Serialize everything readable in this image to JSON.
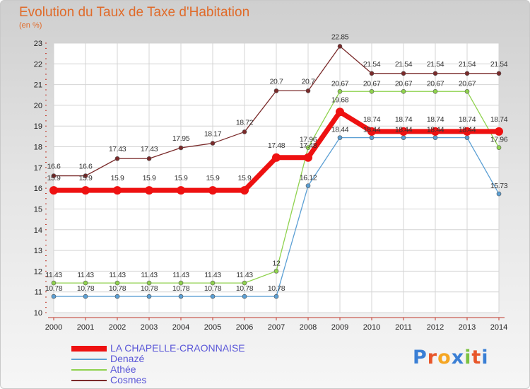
{
  "header": {
    "title": "Evolution du Taux de Taxe d'Habitation",
    "subtitle": "(en %)"
  },
  "logo": {
    "text": "Proxiti",
    "colors": [
      "#3a7fd5",
      "#e8562a",
      "#f5a623",
      "#3a7fd5",
      "#7cc242",
      "#e8562a",
      "#3a7fd5"
    ]
  },
  "chart_data": {
    "type": "line",
    "x": [
      2000,
      2001,
      2002,
      2003,
      2004,
      2005,
      2006,
      2007,
      2008,
      2009,
      2010,
      2011,
      2012,
      2013,
      2014
    ],
    "xtick_labels": [
      "2000",
      "2001",
      "2002",
      "2003",
      "2004",
      "2005",
      "2006",
      "2007",
      "2008",
      "2009",
      "2010",
      "2011",
      "2012",
      "2013",
      "2014"
    ],
    "ylim": [
      10,
      23
    ],
    "ytick_labels": [
      "10",
      "11",
      "12",
      "13",
      "14",
      "15",
      "16",
      "17",
      "18",
      "19",
      "20",
      "21",
      "22",
      "23"
    ],
    "grid": true,
    "legend_position": "bottom-left",
    "series": [
      {
        "name": "LA CHAPELLE-CRAONNAISE",
        "color": "#ee1111",
        "values": [
          15.9,
          15.9,
          15.9,
          15.9,
          15.9,
          15.9,
          15.9,
          17.48,
          17.48,
          19.68,
          18.74,
          18.74,
          18.74,
          18.74,
          18.74
        ],
        "labels": [
          "15.9",
          "15.9",
          "15.9",
          "15.9",
          "15.9",
          "15.9",
          "15.9",
          "17.48",
          "17.48",
          "19.68",
          "18.74",
          "18.74",
          "18.74",
          "18.74",
          "18.74"
        ]
      },
      {
        "name": "Denazé",
        "color": "#5b9fd4",
        "values": [
          10.78,
          10.78,
          10.78,
          10.78,
          10.78,
          10.78,
          10.78,
          10.78,
          16.12,
          18.44,
          18.44,
          18.44,
          18.44,
          18.44,
          15.73
        ],
        "labels": [
          "10.78",
          "10.78",
          "10.78",
          "10.78",
          "10.78",
          "10.78",
          "10.78",
          "10.78",
          "16.12",
          "18.44",
          "18.44",
          "18.44",
          "18.44",
          "18.44",
          "15.73"
        ]
      },
      {
        "name": "Athée",
        "color": "#8fd24e",
        "values": [
          11.43,
          11.43,
          11.43,
          11.43,
          11.43,
          11.43,
          11.43,
          12,
          17.96,
          20.67,
          20.67,
          20.67,
          20.67,
          20.67,
          17.96
        ],
        "labels": [
          "11.43",
          "11.43",
          "11.43",
          "11.43",
          "11.43",
          "11.43",
          "11.43",
          "12",
          "17.96",
          "20.67",
          "20.67",
          "20.67",
          "20.67",
          "20.67",
          "17.96"
        ]
      },
      {
        "name": "Cosmes",
        "color": "#7a2a2a",
        "values": [
          16.6,
          16.6,
          17.43,
          17.43,
          17.95,
          18.17,
          18.72,
          20.7,
          20.7,
          22.85,
          21.54,
          21.54,
          21.54,
          21.54,
          21.54
        ],
        "labels": [
          "16.6",
          "16.6",
          "17.43",
          "17.43",
          "17.95",
          "18.17",
          "18.72",
          "20.7",
          "20.7",
          "22.85",
          "21.54",
          "21.54",
          "21.54",
          "21.54",
          "21.54"
        ]
      }
    ]
  }
}
